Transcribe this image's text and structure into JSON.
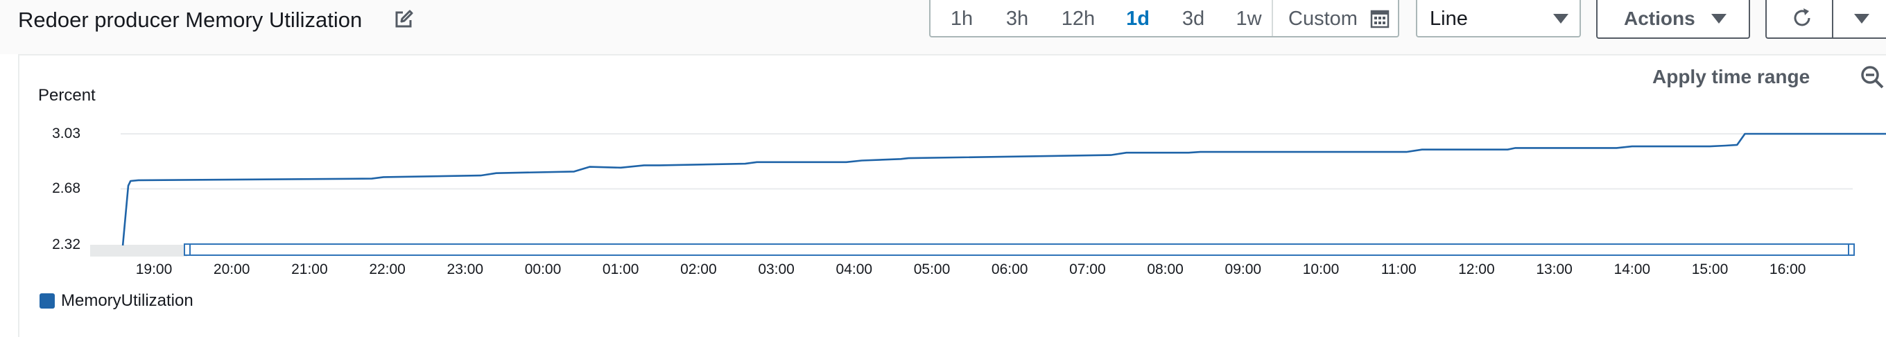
{
  "widget": {
    "title": "Redoer producer Memory Utilization",
    "time_ranges": [
      {
        "label": "1h",
        "active": false
      },
      {
        "label": "3h",
        "active": false
      },
      {
        "label": "12h",
        "active": false
      },
      {
        "label": "1d",
        "active": true
      },
      {
        "label": "3d",
        "active": false
      },
      {
        "label": "1w",
        "active": false
      }
    ],
    "custom_label": "Custom",
    "view_type": "Line",
    "actions_label": "Actions",
    "apply_time_range": "Apply time range",
    "accent_color": "#0073bb"
  },
  "chart_data": {
    "type": "line",
    "ylabel": "Percent",
    "y_ticks": [
      "3.03",
      "2.68",
      "2.32"
    ],
    "ylim": [
      2.32,
      3.03
    ],
    "x_ticks": [
      "19:00",
      "20:00",
      "21:00",
      "22:00",
      "23:00",
      "00:00",
      "01:00",
      "02:00",
      "03:00",
      "04:00",
      "05:00",
      "06:00",
      "07:00",
      "08:00",
      "09:00",
      "10:00",
      "11:00",
      "12:00",
      "13:00",
      "14:00",
      "15:00",
      "16:00"
    ],
    "x_hours": [
      -0.4,
      -0.33,
      -0.3,
      -0.2,
      2.8,
      2.95,
      4.2,
      4.4,
      5.4,
      5.6,
      6.0,
      6.3,
      6.5,
      7.6,
      7.75,
      8.9,
      9.1,
      9.6,
      9.7,
      12.3,
      12.5,
      13.3,
      13.45,
      16.1,
      16.3,
      17.4,
      17.5,
      18.8,
      19.0,
      20.0,
      20.2,
      20.35,
      20.45,
      24.6,
      24.7,
      26.9
    ],
    "series": [
      {
        "name": "MemoryUtilization",
        "color": "#1f64a8",
        "values": [
          2.32,
          2.7,
          2.73,
          2.735,
          2.745,
          2.755,
          2.765,
          2.78,
          2.79,
          2.82,
          2.815,
          2.83,
          2.83,
          2.84,
          2.85,
          2.85,
          2.86,
          2.87,
          2.875,
          2.895,
          2.91,
          2.91,
          2.915,
          2.915,
          2.93,
          2.93,
          2.94,
          2.94,
          2.95,
          2.95,
          2.955,
          2.96,
          3.03,
          3.03,
          3.035,
          3.035
        ]
      }
    ],
    "grid": true,
    "legend_placement": "bottom-left"
  }
}
